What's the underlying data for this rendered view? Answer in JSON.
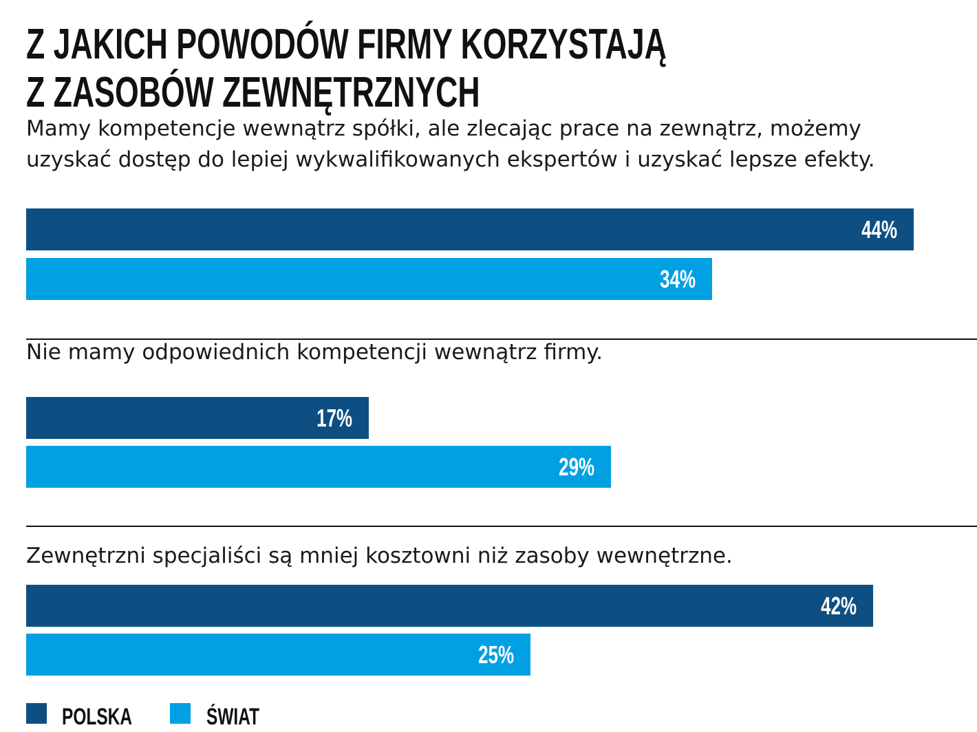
{
  "chart_data": {
    "type": "bar",
    "orientation": "horizontal",
    "title": "Z JAKICH POWODÓW FIRMY KORZYSTAJĄ Z ZASOBÓW ZEWNĘTRZNYCH",
    "title_lines": [
      "Z JAKICH POWODÓW FIRMY KORZYSTAJĄ",
      "Z ZASOBÓW ZEWNĘTRZNYCH"
    ],
    "categories": [
      {
        "lines": [
          "Mamy kompetencje wewnątrz spółki, ale zlecając prace na zewnątrz, możemy",
          "uzyskać dostęp do lepiej wykwalifikowanych ekspertów i uzyskać lepsze efekty."
        ]
      },
      {
        "lines": [
          "Nie mamy odpowiednich kompetencji wewnątrz firmy."
        ]
      },
      {
        "lines": [
          "Zewnętrzni specjaliści są mniej kosztowni niż zasoby wewnętrzne."
        ]
      }
    ],
    "series": [
      {
        "name": "POLSKA",
        "color": "#0d4f82",
        "values": [
          44,
          17,
          42
        ],
        "labels": [
          "44%",
          "17%",
          "42%"
        ]
      },
      {
        "name": "ŚWIAT",
        "color": "#00a0e3",
        "values": [
          34,
          29,
          25
        ],
        "labels": [
          "34%",
          "29%",
          "25%"
        ]
      }
    ],
    "unit": "%",
    "legend": "bottom-left",
    "grid": false
  }
}
